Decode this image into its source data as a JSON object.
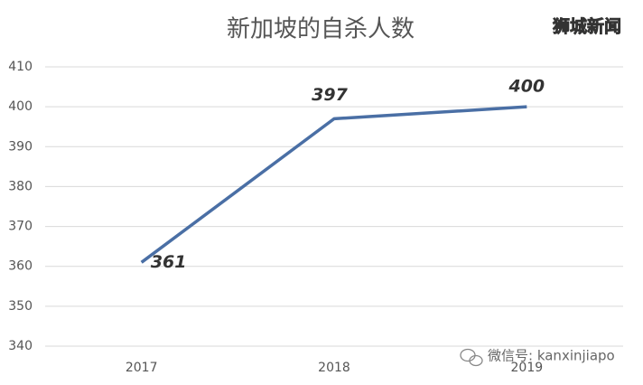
{
  "chart_data": {
    "type": "line",
    "title": "新加坡的自杀人数",
    "categories": [
      "2017",
      "2018",
      "2019"
    ],
    "series": [
      {
        "name": "自杀人数",
        "color": "#4a6fa5",
        "values": [
          361,
          397,
          400
        ]
      }
    ],
    "ylim": [
      340,
      410
    ],
    "yticks": [
      340,
      350,
      360,
      370,
      380,
      390,
      400,
      410
    ],
    "grid": true,
    "annotations": {
      "watermark": "狮城新闻",
      "wechat": "微信号: kanxinjiapo"
    }
  }
}
